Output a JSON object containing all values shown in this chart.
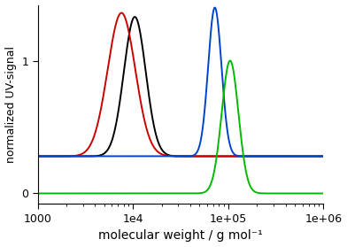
{
  "xlim": [
    1000,
    1000000
  ],
  "ylim": [
    -0.08,
    1.42
  ],
  "xlabel": "molecular weight / g mol⁻¹",
  "ylabel": "normalized UV-signal",
  "yticks": [
    0.0,
    1.0
  ],
  "curves": [
    {
      "color": "#000000",
      "mu_log": 4.02,
      "sigma_log": 0.115,
      "amplitude": 1.05,
      "baseline": 0.28
    },
    {
      "color": "#cc0000",
      "mu_log": 3.88,
      "sigma_log": 0.145,
      "amplitude": 1.08,
      "baseline": 0.28
    },
    {
      "color": "#0044cc",
      "mu_log": 4.86,
      "sigma_log": 0.07,
      "amplitude": 1.12,
      "baseline": 0.28
    },
    {
      "color": "#00bb00",
      "mu_log": 5.02,
      "sigma_log": 0.088,
      "amplitude": 1.0,
      "baseline": 0.0
    }
  ],
  "linewidth": 1.4,
  "xlabel_fontsize": 10,
  "ylabel_fontsize": 9,
  "tick_fontsize": 9,
  "background_color": "#ffffff"
}
